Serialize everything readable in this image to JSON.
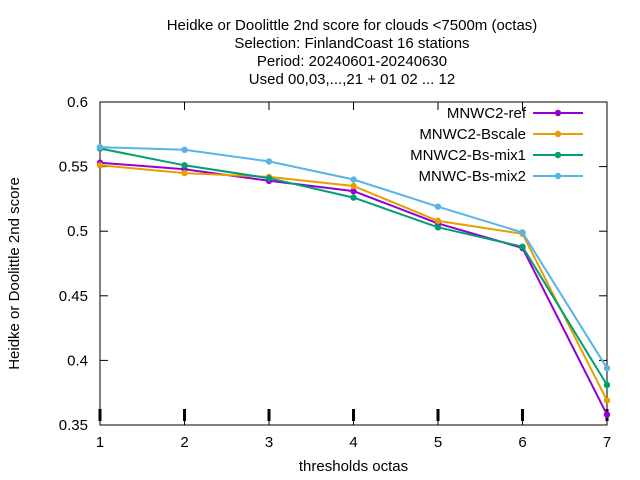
{
  "chart_data": {
    "type": "line",
    "title_lines": [
      "Heidke or Doolittle 2nd score  for clouds <7500m (octas)",
      "Selection: FinlandCoast      16 stations",
      "Period: 20240601-20240630",
      "Used 00,03,...,21 + 01 02 ... 12"
    ],
    "xlabel": "thresholds octas",
    "ylabel": "Heidke or Doolittle 2nd score",
    "x": [
      1,
      2,
      3,
      4,
      5,
      6,
      7
    ],
    "xticks": [
      "1",
      "2",
      "3",
      "4",
      "5",
      "6",
      "7"
    ],
    "yticks": [
      "0.35",
      "0.4",
      "0.45",
      "0.5",
      "0.55",
      "0.6"
    ],
    "xlim": [
      1,
      7
    ],
    "ylim": [
      0.35,
      0.6
    ],
    "grid": false,
    "legend_position": "top-right",
    "series": [
      {
        "name": "MNWC2-ref",
        "color": "#9400d3",
        "values": [
          0.553,
          0.548,
          0.539,
          0.531,
          0.506,
          0.487,
          0.358
        ]
      },
      {
        "name": "MNWC2-Bscale",
        "color": "#e69f00",
        "values": [
          0.551,
          0.545,
          0.542,
          0.535,
          0.508,
          0.498,
          0.369
        ]
      },
      {
        "name": "MNWC2-Bs-mix1",
        "color": "#009e73",
        "values": [
          0.564,
          0.551,
          0.541,
          0.526,
          0.503,
          0.488,
          0.381
        ]
      },
      {
        "name": "MNWC-Bs-mix2",
        "color": "#56b4e9",
        "values": [
          0.565,
          0.563,
          0.554,
          0.54,
          0.519,
          0.499,
          0.394
        ]
      }
    ]
  }
}
